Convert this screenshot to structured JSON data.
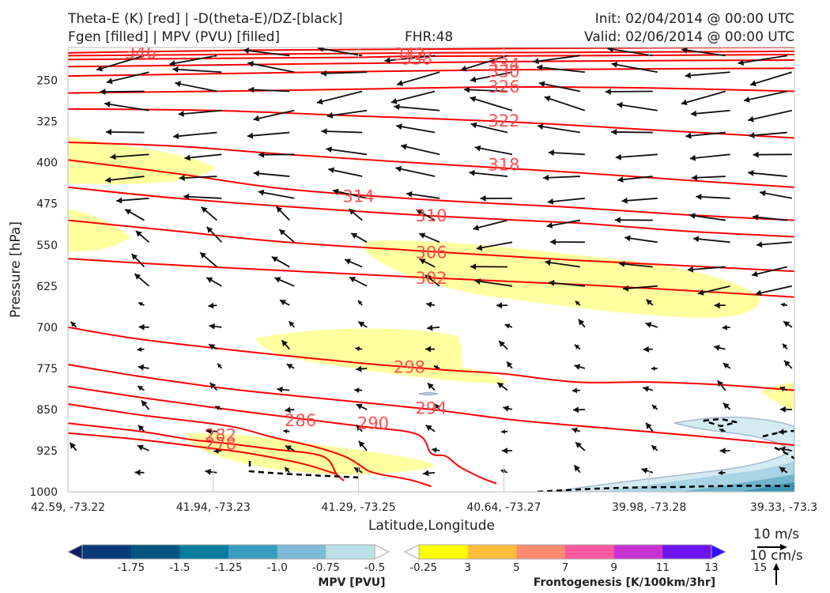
{
  "header": {
    "title_line1": "Theta-E (K) [red] | -D(theta-E)/DZ-[black]",
    "title_line2": "Fgen [filled] | MPV (PVU) [filled]",
    "fhr": "FHR:48",
    "init": "Init: 02/04/2014 @ 00:00 UTC",
    "valid": "Valid: 02/06/2014 @ 00:00 UTC"
  },
  "chart_data": {
    "type": "cross-section",
    "xlabel": "Latitude,Longitude",
    "ylabel": "Pressure [hPa]",
    "x_ticks": [
      "42.59, -73.22",
      "41.94, -73.23",
      "41.29, -73.25",
      "40.64, -73.27",
      "39.98, -73.28",
      "39.33, -73.3"
    ],
    "y_ticks": [
      250,
      325,
      400,
      475,
      550,
      625,
      700,
      775,
      850,
      925,
      1000
    ],
    "ylim": [
      1000,
      190
    ],
    "theta_e_color": "#ff0000",
    "theta_e_contours": [
      {
        "value": 346,
        "label": "346",
        "points": [
          [
            0,
            200
          ],
          [
            8,
            198
          ],
          [
            25,
            195
          ],
          [
            50,
            193
          ],
          [
            75,
            191
          ],
          [
            100,
            190
          ]
        ]
      },
      {
        "value": 342,
        "label": "342",
        "points": [
          [
            0,
            205
          ],
          [
            20,
            203
          ],
          [
            40,
            201
          ],
          [
            47,
            200
          ],
          [
            70,
            199
          ],
          [
            100,
            197
          ]
        ]
      },
      {
        "value": 338,
        "label": "338",
        "points": [
          [
            0,
            212
          ],
          [
            20,
            210
          ],
          [
            40,
            208
          ],
          [
            48,
            206
          ],
          [
            70,
            205
          ],
          [
            100,
            203
          ]
        ]
      },
      {
        "value": 334,
        "label": "334",
        "points": [
          [
            0,
            225
          ],
          [
            20,
            222
          ],
          [
            40,
            219
          ],
          [
            60,
            216
          ],
          [
            80,
            214
          ],
          [
            100,
            213
          ]
        ]
      },
      {
        "value": 330,
        "label": "330",
        "points": [
          [
            0,
            242
          ],
          [
            20,
            238
          ],
          [
            40,
            234
          ],
          [
            60,
            231
          ],
          [
            80,
            229
          ],
          [
            100,
            228
          ]
        ]
      },
      {
        "value": 326,
        "label": "326",
        "points": [
          [
            0,
            273
          ],
          [
            20,
            270
          ],
          [
            40,
            266
          ],
          [
            60,
            262
          ],
          [
            80,
            264
          ],
          [
            100,
            270
          ]
        ]
      },
      {
        "value": 322,
        "label": "322",
        "points": [
          [
            0,
            302
          ],
          [
            20,
            305
          ],
          [
            40,
            315
          ],
          [
            60,
            325
          ],
          [
            80,
            340
          ],
          [
            100,
            355
          ]
        ]
      },
      {
        "value": 318,
        "label": "318",
        "points": [
          [
            0,
            363
          ],
          [
            15,
            370
          ],
          [
            30,
            385
          ],
          [
            50,
            402
          ],
          [
            70,
            418
          ],
          [
            85,
            432
          ],
          [
            100,
            445
          ]
        ]
      },
      {
        "value": 314,
        "label": "314",
        "points": [
          [
            0,
            395
          ],
          [
            15,
            420
          ],
          [
            30,
            448
          ],
          [
            50,
            468
          ],
          [
            70,
            482
          ],
          [
            85,
            495
          ],
          [
            100,
            505
          ]
        ]
      },
      {
        "value": 310,
        "label": "310",
        "points": [
          [
            0,
            445
          ],
          [
            15,
            465
          ],
          [
            30,
            480
          ],
          [
            50,
            497
          ],
          [
            70,
            510
          ],
          [
            85,
            525
          ],
          [
            100,
            535
          ]
        ]
      },
      {
        "value": 306,
        "label": "306",
        "points": [
          [
            0,
            505
          ],
          [
            15,
            525
          ],
          [
            30,
            545
          ],
          [
            50,
            562
          ],
          [
            70,
            578
          ],
          [
            85,
            588
          ],
          [
            100,
            598
          ]
        ]
      },
      {
        "value": 302,
        "label": "302",
        "points": [
          [
            0,
            575
          ],
          [
            15,
            587
          ],
          [
            30,
            597
          ],
          [
            50,
            610
          ],
          [
            70,
            622
          ],
          [
            85,
            633
          ],
          [
            100,
            645
          ]
        ]
      },
      {
        "value": 298,
        "label": "298",
        "points": [
          [
            0,
            700
          ],
          [
            10,
            722
          ],
          [
            25,
            745
          ],
          [
            40,
            765
          ],
          [
            52,
            778
          ],
          [
            60,
            785
          ],
          [
            70,
            800
          ],
          [
            80,
            800
          ],
          [
            90,
            805
          ],
          [
            100,
            815
          ]
        ]
      },
      {
        "value": 294,
        "label": "294",
        "points": [
          [
            0,
            768
          ],
          [
            10,
            790
          ],
          [
            22,
            812
          ],
          [
            35,
            830
          ],
          [
            50,
            850
          ],
          [
            62,
            870
          ],
          [
            75,
            885
          ],
          [
            88,
            900
          ],
          [
            100,
            915
          ]
        ]
      },
      {
        "value": 290,
        "label": "290",
        "points": [
          [
            0,
            808
          ],
          [
            10,
            828
          ],
          [
            25,
            855
          ],
          [
            40,
            880
          ],
          [
            48,
            895
          ],
          [
            50,
            930
          ],
          [
            52,
            935
          ],
          [
            54,
            955
          ],
          [
            57,
            975
          ],
          [
            59,
            985
          ]
        ]
      },
      {
        "value": 286,
        "label": "286",
        "points": [
          [
            0,
            840
          ],
          [
            10,
            860
          ],
          [
            22,
            880
          ],
          [
            28,
            900
          ],
          [
            34,
            918
          ],
          [
            38,
            935
          ],
          [
            40,
            950
          ],
          [
            42,
            965
          ],
          [
            47,
            978
          ],
          [
            50,
            990
          ]
        ]
      },
      {
        "value": 282,
        "label": "282",
        "points": [
          [
            0,
            875
          ],
          [
            10,
            890
          ],
          [
            17,
            905
          ],
          [
            22,
            912
          ],
          [
            28,
            922
          ],
          [
            35,
            935
          ],
          [
            37,
            968
          ],
          [
            38,
            980
          ]
        ]
      },
      {
        "value": 278,
        "label": "278",
        "points": [
          [
            0,
            893
          ],
          [
            10,
            905
          ],
          [
            18,
            918
          ],
          [
            24,
            928
          ],
          [
            32,
            948
          ],
          [
            37,
            968
          ]
        ]
      }
    ],
    "dthetae_dz_contours_color": "#000000",
    "fgen_bins": [
      3,
      5,
      7,
      9,
      11,
      13,
      15
    ],
    "fgen_colors": [
      "#ffffff",
      "#ffff00",
      "#ffbe3c",
      "#ff8a6e",
      "#ff5aa0",
      "#c832d2",
      "#6e14f0",
      "#2d14ff"
    ],
    "mpv_bins": [
      -1.75,
      -1.5,
      -1.25,
      -1.0,
      -0.75,
      -0.5,
      -0.25
    ],
    "mpv_colors": [
      "#0b1e6e",
      "#083a78",
      "#04557f",
      "#067d9f",
      "#3a9cbf",
      "#7cbad5",
      "#bde0ea",
      "#ffffff"
    ],
    "colorbars": {
      "mpv": {
        "label": "MPV [PVU]",
        "ticks": [
          "-1.75",
          "-1.5",
          "-1.25",
          "-1.0",
          "-0.75",
          "-0.5",
          "-0.25"
        ]
      },
      "fgen": {
        "label": "Frontogenesis [K/100km/3hr]",
        "ticks": [
          "3",
          "5",
          "7",
          "9",
          "11",
          "13",
          "15"
        ]
      }
    },
    "reference_vectors": {
      "horizontal": "10 m/s",
      "vertical": "10 cm/s"
    }
  }
}
